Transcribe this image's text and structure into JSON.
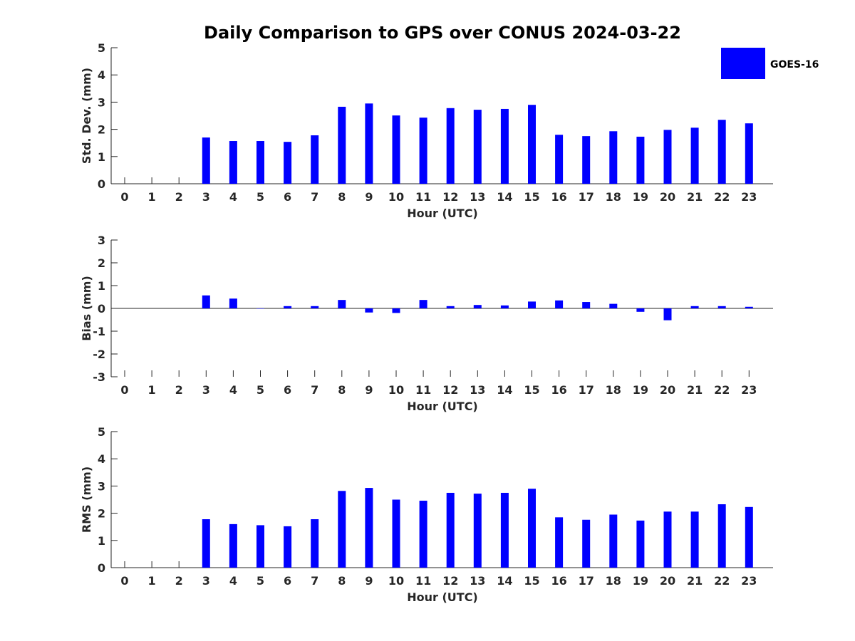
{
  "figure": {
    "title": "Daily Comparison to GPS over CONUS 2024-03-22"
  },
  "legend": {
    "label": "GOES-16",
    "color": "#0000ff"
  },
  "chart_data": [
    {
      "type": "bar",
      "title": "Daily Comparison to GPS over CONUS 2024-03-22",
      "xlabel": "Hour (UTC)",
      "ylabel": "Std. Dev. (mm)",
      "ylim": [
        0,
        5
      ],
      "yticks": [
        "0",
        "1",
        "2",
        "3",
        "4",
        "5"
      ],
      "categories": [
        "0",
        "1",
        "2",
        "3",
        "4",
        "5",
        "6",
        "7",
        "8",
        "9",
        "10",
        "11",
        "12",
        "13",
        "14",
        "15",
        "16",
        "17",
        "18",
        "19",
        "20",
        "21",
        "22",
        "23"
      ],
      "series": [
        {
          "name": "GOES-16",
          "color": "#0000ff",
          "values": [
            null,
            null,
            null,
            1.7,
            1.57,
            1.57,
            1.54,
            1.78,
            2.83,
            2.95,
            2.51,
            2.43,
            2.78,
            2.72,
            2.75,
            2.9,
            1.8,
            1.75,
            1.93,
            1.73,
            1.98,
            2.06,
            2.35,
            2.22
          ]
        }
      ]
    },
    {
      "type": "bar",
      "xlabel": "Hour (UTC)",
      "ylabel": "Bias (mm)",
      "ylim": [
        -3,
        3
      ],
      "yticks": [
        "-3",
        "-2",
        "-1",
        "0",
        "1",
        "2",
        "3"
      ],
      "categories": [
        "0",
        "1",
        "2",
        "3",
        "4",
        "5",
        "6",
        "7",
        "8",
        "9",
        "10",
        "11",
        "12",
        "13",
        "14",
        "15",
        "16",
        "17",
        "18",
        "19",
        "20",
        "21",
        "22",
        "23"
      ],
      "series": [
        {
          "name": "GOES-16",
          "color": "#0000ff",
          "values": [
            null,
            null,
            null,
            0.57,
            0.43,
            0.0,
            0.1,
            0.1,
            0.37,
            -0.18,
            -0.2,
            0.37,
            0.1,
            0.15,
            0.13,
            0.3,
            0.35,
            0.28,
            0.2,
            -0.15,
            -0.52,
            0.1,
            0.1,
            0.07
          ]
        }
      ]
    },
    {
      "type": "bar",
      "xlabel": "Hour (UTC)",
      "ylabel": "RMS (mm)",
      "ylim": [
        0,
        5
      ],
      "yticks": [
        "0",
        "1",
        "2",
        "3",
        "4",
        "5"
      ],
      "categories": [
        "0",
        "1",
        "2",
        "3",
        "4",
        "5",
        "6",
        "7",
        "8",
        "9",
        "10",
        "11",
        "12",
        "13",
        "14",
        "15",
        "16",
        "17",
        "18",
        "19",
        "20",
        "21",
        "22",
        "23"
      ],
      "series": [
        {
          "name": "GOES-16",
          "color": "#0000ff",
          "values": [
            null,
            null,
            null,
            1.78,
            1.6,
            1.56,
            1.52,
            1.78,
            2.82,
            2.93,
            2.5,
            2.46,
            2.75,
            2.72,
            2.75,
            2.9,
            1.85,
            1.76,
            1.95,
            1.73,
            2.06,
            2.06,
            2.33,
            2.23
          ]
        }
      ]
    }
  ]
}
